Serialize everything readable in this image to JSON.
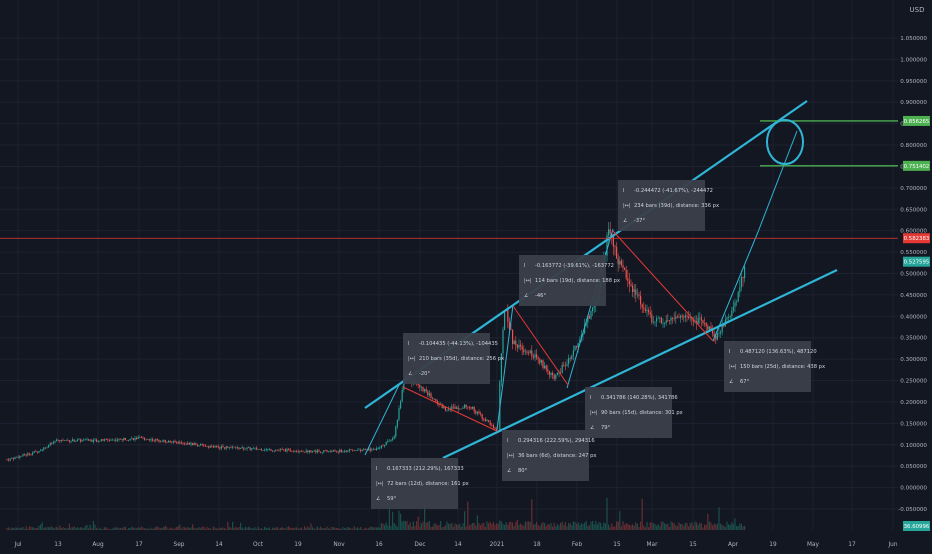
{
  "currency": "USD",
  "colors": {
    "background": "#131722",
    "grid": "#1e2230",
    "up": "#26a69a",
    "down": "#ef5350",
    "channel": "#2fb5d6",
    "red_line": "#e53935",
    "green_line": "#4caf50",
    "axis_text": "#b2b5be",
    "box_bg": "#3a3f4b"
  },
  "chart_data": {
    "type": "candlestick",
    "x_axis": {
      "tick_labels": [
        "Jul",
        "13",
        "Aug",
        "17",
        "Sep",
        "14",
        "Oct",
        "19",
        "Nov",
        "16",
        "Dec",
        "14",
        "2021",
        "18",
        "Feb",
        "15",
        "Mar",
        "15",
        "Apr",
        "19",
        "May",
        "17",
        "Jun"
      ]
    },
    "y_axis": {
      "tick_labels": [
        "1.050000",
        "1.000000",
        "0.950000",
        "0.900000",
        "0.850000",
        "0.800000",
        "0.750000",
        "0.700000",
        "0.650000",
        "0.600000",
        "0.550000",
        "0.500000",
        "0.450000",
        "0.400000",
        "0.350000",
        "0.300000",
        "0.250000",
        "0.200000",
        "0.150000",
        "0.100000",
        "0.050000",
        "0.000000",
        "-0.050000"
      ],
      "range": [
        -0.07,
        1.09
      ]
    },
    "price_labels": [
      {
        "value": 0.856265,
        "label": "0.856265",
        "color": "#4caf50"
      },
      {
        "value": 0.751402,
        "label": "0.751402",
        "color": "#4caf50"
      },
      {
        "value": 0.582383,
        "label": "0.582383",
        "color": "#e53935"
      },
      {
        "value": 0.527595,
        "label": "0.527595",
        "color": "#26a69a"
      },
      {
        "value": -0.072,
        "label": "36.60996",
        "color": "#26a69a"
      }
    ],
    "price_path": [
      [
        "Jul 1",
        0.065
      ],
      [
        "Jul 13",
        0.085
      ],
      [
        "Jul 20",
        0.11
      ],
      [
        "Aug 1",
        0.11
      ],
      [
        "Aug 17",
        0.115
      ],
      [
        "Sep 1",
        0.105
      ],
      [
        "Sep 14",
        0.095
      ],
      [
        "Oct 1",
        0.09
      ],
      [
        "Oct 19",
        0.085
      ],
      [
        "Nov 1",
        0.085
      ],
      [
        "Nov 16",
        0.09
      ],
      [
        "Nov 22",
        0.12
      ],
      [
        "Nov 26",
        0.26
      ],
      [
        "Dec 1",
        0.235
      ],
      [
        "Dec 10",
        0.185
      ],
      [
        "Dec 20",
        0.19
      ],
      [
        "Dec 31",
        0.13
      ],
      [
        "Jan 4",
        0.15
      ],
      [
        "Jan 7",
        0.43
      ],
      [
        "Jan 10",
        0.34
      ],
      [
        "Jan 18",
        0.31
      ],
      [
        "Jan 26",
        0.255
      ],
      [
        "Feb 1",
        0.33
      ],
      [
        "Feb 9",
        0.45
      ],
      [
        "Feb 13",
        0.6
      ],
      [
        "Feb 17",
        0.52
      ],
      [
        "Feb 22",
        0.47
      ],
      [
        "Mar 1",
        0.39
      ],
      [
        "Mar 15",
        0.4
      ],
      [
        "Mar 22",
        0.38
      ],
      [
        "Mar 25",
        0.35
      ],
      [
        "Mar 31",
        0.41
      ],
      [
        "Apr 3",
        0.45
      ],
      [
        "Apr 6",
        0.53
      ]
    ],
    "volume_labels": [],
    "drawings": {
      "upper_channel": {
        "from": [
          "Nov 1",
          0.19
        ],
        "to": [
          "Apr 22",
          0.92
        ]
      },
      "lower_channel": {
        "from": [
          "Nov 1",
          0.035
        ],
        "to": [
          "Apr 22",
          0.52
        ]
      },
      "target_ellipse": {
        "center": [
          "Apr 14",
          0.835
        ],
        "label": "target"
      },
      "green_levels": [
        0.856265,
        0.751402
      ],
      "red_level": 0.582383
    },
    "measure_boxes": [
      {
        "line1": "0.167333 (212.29%), 167333",
        "line2": "72 bars (12d), distance: 161 px",
        "line3": "59°"
      },
      {
        "line1": "-0.104435 (-44.13%), -104435",
        "line2": "210 bars (35d), distance: 256 px",
        "line3": "-20°"
      },
      {
        "line1": "0.294316 (222.59%), 294316",
        "line2": "36 bars (6d), distance: 247 px",
        "line3": "80°"
      },
      {
        "line1": "-0.163772 (-39.61%), -163772",
        "line2": "114 bars (19d), distance: 188 px",
        "line3": "-46°"
      },
      {
        "line1": "0.341786 (140.28%), 341786",
        "line2": "90 bars (15d), distance: 301 px",
        "line3": "79°"
      },
      {
        "line1": "-0.244472 (-41.67%), -244472",
        "line2": "234 bars (39d), distance: 336 px",
        "line3": "-37°"
      },
      {
        "line1": "0.487120 (136.63%), 487120",
        "line2": "150 bars (25d), distance: 438 px",
        "line3": "67°"
      }
    ]
  }
}
